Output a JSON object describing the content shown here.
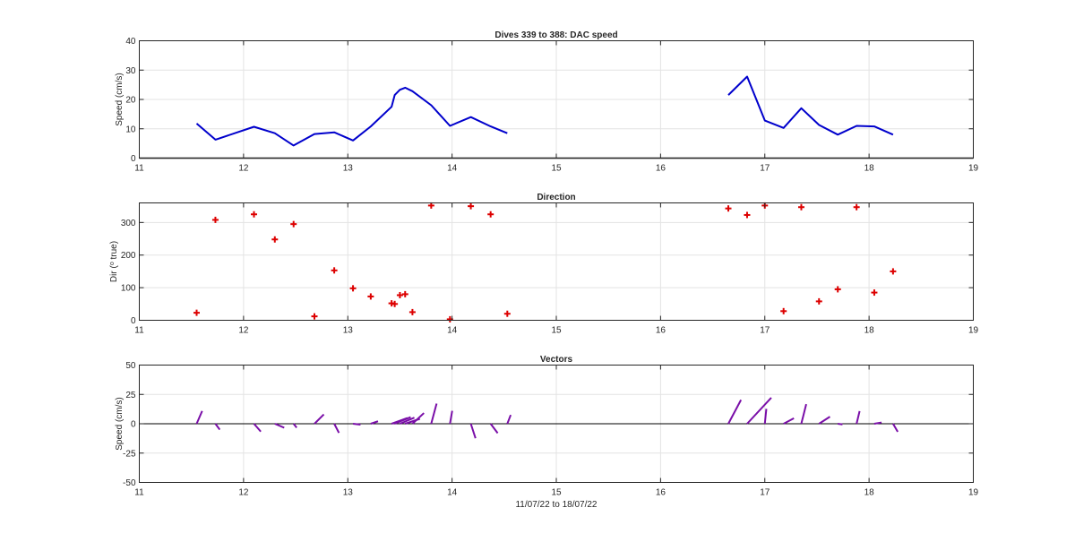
{
  "chart_data": [
    {
      "type": "line",
      "title": "Dives 339 to 388: DAC speed",
      "xlabel": "",
      "ylabel": "Speed (cm/s)",
      "xlim": [
        11,
        19
      ],
      "ylim": [
        0,
        40
      ],
      "xticks": [
        "11",
        "12",
        "13",
        "14",
        "15",
        "16",
        "17",
        "18",
        "19"
      ],
      "yticks": [
        "0",
        "10",
        "20",
        "30",
        "40"
      ],
      "grid": true,
      "colors": {
        "line": "#0000cc",
        "zero_line": "#000000"
      },
      "series": [
        {
          "points": [
            [
              11.55,
              11.8
            ],
            [
              11.73,
              6.3
            ],
            [
              12.1,
              10.7
            ],
            [
              12.3,
              8.5
            ],
            [
              12.48,
              4.3
            ],
            [
              12.68,
              8.2
            ],
            [
              12.87,
              8.8
            ],
            [
              13.05,
              6.0
            ],
            [
              13.22,
              10.8
            ],
            [
              13.42,
              17.5
            ],
            [
              13.45,
              21.5
            ],
            [
              13.5,
              23.3
            ],
            [
              13.55,
              24.0
            ],
            [
              13.62,
              22.8
            ],
            [
              13.8,
              18.0
            ],
            [
              13.98,
              11.0
            ],
            [
              14.18,
              14.0
            ],
            [
              14.37,
              10.8
            ],
            [
              14.53,
              8.5
            ]
          ]
        },
        {
          "points": [
            [
              16.65,
              21.5
            ],
            [
              16.83,
              27.8
            ],
            [
              17.0,
              12.8
            ],
            [
              17.18,
              10.3
            ],
            [
              17.35,
              17.0
            ],
            [
              17.52,
              11.3
            ],
            [
              17.7,
              8.0
            ],
            [
              17.88,
              11.0
            ],
            [
              18.05,
              10.8
            ],
            [
              18.23,
              8.0
            ]
          ]
        }
      ]
    },
    {
      "type": "scatter",
      "title": "Direction",
      "xlabel": "",
      "ylabel": "Dir (° true)",
      "xlim": [
        11,
        19
      ],
      "ylim": [
        0,
        360
      ],
      "xticks": [
        "11",
        "12",
        "13",
        "14",
        "15",
        "16",
        "17",
        "18",
        "19"
      ],
      "yticks": [
        "0",
        "100",
        "200",
        "300"
      ],
      "grid": true,
      "marker": "+",
      "colors": {
        "marker": "#dd0000"
      },
      "x": [
        11.55,
        11.73,
        12.1,
        12.3,
        12.48,
        12.68,
        12.87,
        13.05,
        13.22,
        13.42,
        13.45,
        13.5,
        13.55,
        13.62,
        13.8,
        13.98,
        14.18,
        14.37,
        14.53,
        16.65,
        16.83,
        17.0,
        17.18,
        17.35,
        17.52,
        17.7,
        17.88,
        18.05,
        18.23
      ],
      "y": [
        23,
        308,
        325,
        248,
        295,
        12,
        153,
        98,
        73,
        52,
        50,
        77,
        80,
        25,
        352,
        3,
        350,
        325,
        20,
        343,
        323,
        352,
        28,
        347,
        58,
        95,
        347,
        85,
        150
      ]
    },
    {
      "type": "vector",
      "title": "Vectors",
      "xlabel": "11/07/22 to 18/07/22",
      "ylabel": "Speed (cm/s)",
      "xlim": [
        11,
        19
      ],
      "ylim": [
        -50,
        50
      ],
      "xticks": [
        "11",
        "12",
        "13",
        "14",
        "15",
        "16",
        "17",
        "18",
        "19"
      ],
      "yticks": [
        "-50",
        "-25",
        "0",
        "25",
        "50"
      ],
      "grid": true,
      "colors": {
        "vector": "#7a0fa8",
        "zero_line": "#000000"
      },
      "u": [
        4.7,
        3.7,
        5.8,
        8.0,
        2.6,
        8.0,
        4.0,
        6.4,
        6.2,
        13.5,
        13.6,
        12.3,
        12.6,
        9.8,
        4.6,
        1.9,
        4.0,
        6.0,
        2.9,
        10.8,
        20.6,
        1.3,
        8.8,
        4.2,
        9.3,
        4.0,
        2.6,
        6.2,
        4.0
      ],
      "v": [
        10.9,
        -5.0,
        -6.7,
        -3.4,
        -3.3,
        8.0,
        -7.8,
        -0.8,
        2.1,
        4.9,
        5.7,
        5.2,
        4.2,
        9.1,
        17.2,
        11.0,
        -12.4,
        -8.0,
        7.5,
        20.3,
        22.2,
        12.7,
        4.7,
        16.7,
        6.0,
        -0.6,
        10.8,
        1.1,
        -6.9
      ]
    }
  ]
}
